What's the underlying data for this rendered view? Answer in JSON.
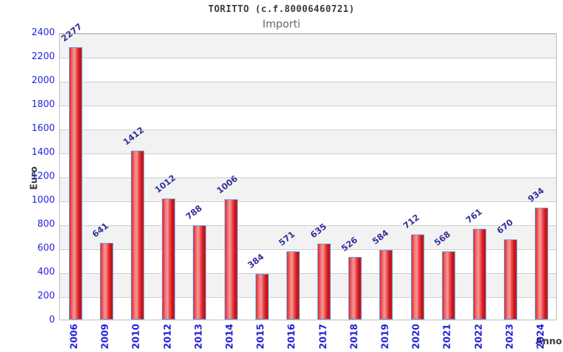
{
  "header": {
    "title": "TORITTO (c.f.80006460721)",
    "subtitle": "Importi"
  },
  "chart_data": {
    "type": "bar",
    "title": "TORITTO (c.f.80006460721)",
    "subtitle": "Importi",
    "xlabel": "Anno",
    "ylabel": "Euro",
    "categories": [
      "2006",
      "2009",
      "2010",
      "2012",
      "2013",
      "2014",
      "2015",
      "2016",
      "2017",
      "2018",
      "2019",
      "2020",
      "2021",
      "2022",
      "2023",
      "2024"
    ],
    "values": [
      2277,
      641,
      1412,
      1012,
      788,
      1006,
      384,
      571,
      635,
      526,
      584,
      712,
      568,
      761,
      670,
      934
    ],
    "ylim": [
      0,
      2400
    ],
    "ytick_step": 200,
    "grid": true,
    "legend": false,
    "bar_value_labels": true,
    "colors": {
      "bar_fill_edge": "#e52728",
      "bar_fill_highlight": "#f7999a",
      "bar_fill_shadow": "#bb1016",
      "bar_border": "#64a0dc",
      "axis_tick_text": "#2121dd",
      "bar_value_text": "#32329b",
      "axis_title_text": "#3a3a3a",
      "band_gray": "#f2f2f2",
      "band_white": "#ffffff",
      "grid_line": "#cccccc",
      "plot_border": "#bbbbbb",
      "title_text": "#3a3a3a",
      "subtitle_text": "#666666"
    }
  }
}
